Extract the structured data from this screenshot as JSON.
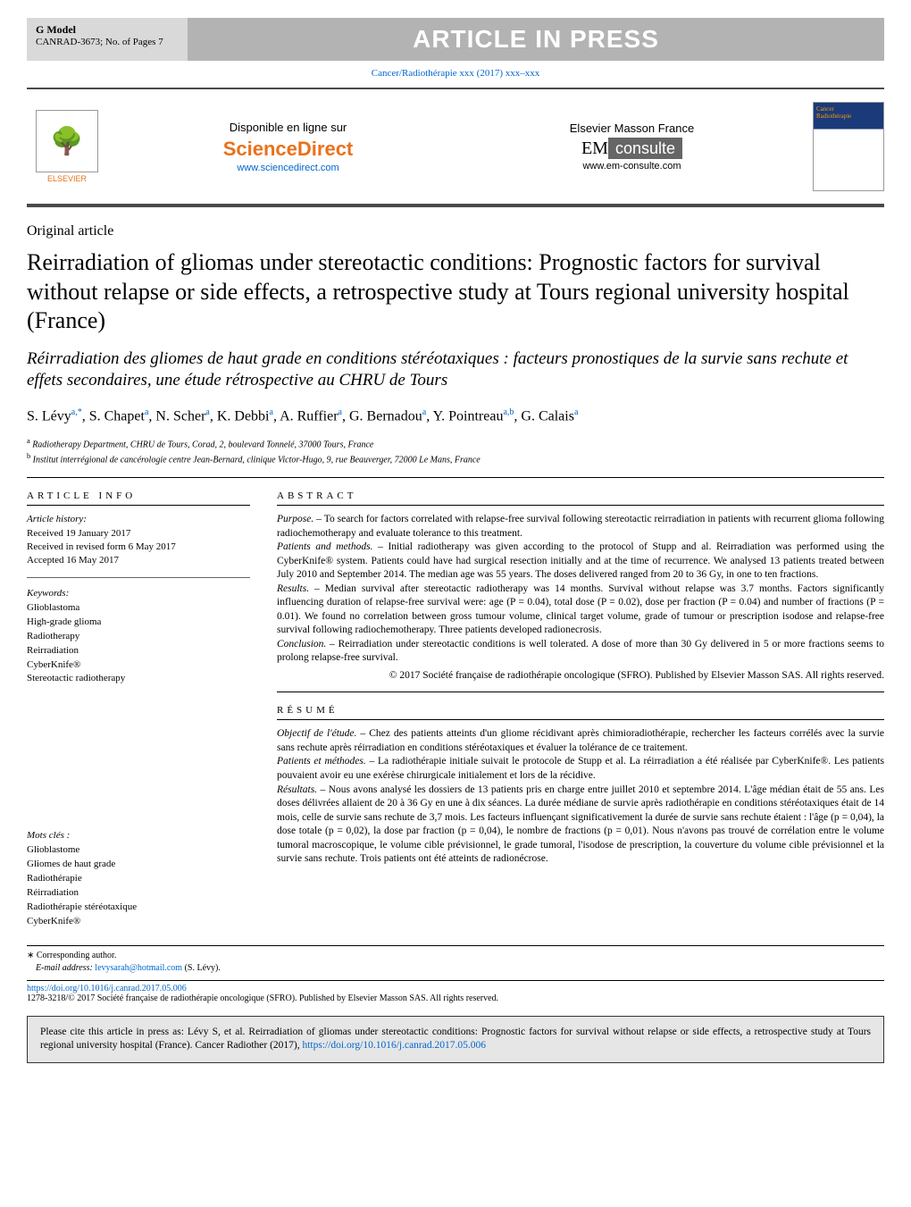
{
  "topbar": {
    "gmodel": "G Model",
    "canrad": "CANRAD-3673;   No. of Pages 7",
    "banner": "ARTICLE IN PRESS"
  },
  "journal_ref": "Cancer/Radiothérapie xxx (2017) xxx–xxx",
  "header": {
    "elsevier": "ELSEVIER",
    "disponible": "Disponible en ligne sur",
    "sciencedirect": "ScienceDirect",
    "sd_url": "www.sciencedirect.com",
    "masson_label": "Elsevier Masson France",
    "em": "EM",
    "consulte": "consulte",
    "em_url": "www.em-consulte.com",
    "cover_top": "Cancer",
    "cover_sub": "Radiothérapie"
  },
  "article_type": "Original article",
  "title": "Reirradiation of gliomas under stereotactic conditions: Prognostic factors for survival without relapse or side effects, a retrospective study at Tours regional university hospital (France)",
  "subtitle_fr": "Réirradiation des gliomes de haut grade en conditions stéréotaxiques : facteurs pronostiques de la survie sans rechute et effets secondaires, une étude rétrospective au CHRU de Tours",
  "authors_html": "S. Lévy<sup>a,*</sup>, S. Chapet<sup>a</sup>, N. Scher<sup>a</sup>, K. Debbi<sup>a</sup>, A. Ruffier<sup>a</sup>, G. Bernadou<sup>a</sup>, Y. Pointreau<sup>a,b</sup>, G. Calais<sup>a</sup>",
  "affiliations": {
    "a": "Radiotherapy Department, CHRU de Tours, Corad, 2, boulevard Tonnelé, 37000 Tours, France",
    "b": "Institut interrégional de cancérologie centre Jean-Bernard, clinique Victor-Hugo, 9, rue Beauverger, 72000 Le Mans, France"
  },
  "info": {
    "label": "article info",
    "history_h": "Article history:",
    "received": "Received 19 January 2017",
    "revised": "Received in revised form 6 May 2017",
    "accepted": "Accepted 16 May 2017",
    "keywords_h": "Keywords:",
    "keywords": [
      "Glioblastoma",
      "High-grade glioma",
      "Radiotherapy",
      "Reirradiation",
      "CyberKnife®",
      "Stereotactic radiotherapy"
    ],
    "mots_h": "Mots clés :",
    "mots": [
      "Glioblastome",
      "Gliomes de haut grade",
      "Radiothérapie",
      "Réirradiation",
      "Radiothérapie stéréotaxique",
      "CyberKnife®"
    ]
  },
  "abstract": {
    "label": "abstract",
    "purpose_h": "Purpose. – ",
    "purpose": "To search for factors correlated with relapse-free survival following stereotactic reirradiation in patients with recurrent glioma following radiochemotherapy and evaluate tolerance to this treatment.",
    "methods_h": "Patients and methods. – ",
    "methods": "Initial radiotherapy was given according to the protocol of Stupp and al. Reirradiation was performed using the CyberKnife® system. Patients could have had surgical resection initially and at the time of recurrence. We analysed 13 patients treated between July 2010 and September 2014. The median age was 55 years. The doses delivered ranged from 20 to 36 Gy, in one to ten fractions.",
    "results_h": "Results. – ",
    "results": "Median survival after stereotactic radiotherapy was 14 months. Survival without relapse was 3.7 months. Factors significantly influencing duration of relapse-free survival were: age (P = 0.04), total dose (P = 0.02), dose per fraction (P = 0.04) and number of fractions (P = 0.01). We found no correlation between gross tumour volume, clinical target volume, grade of tumour or prescription isodose and relapse-free survival following radiochemotherapy. Three patients developed radionecrosis.",
    "conclusion_h": "Conclusion. – ",
    "conclusion": "Reirradiation under stereotactic conditions is well tolerated. A dose of more than 30 Gy delivered in 5 or more fractions seems to prolong relapse-free survival.",
    "copyright": "© 2017 Société française de radiothérapie oncologique (SFRO). Published by Elsevier Masson SAS. All rights reserved."
  },
  "resume": {
    "label": "résumé",
    "objectif_h": "Objectif de l'étude. – ",
    "objectif": "Chez des patients atteints d'un gliome récidivant après chimioradiothérapie, rechercher les facteurs corrélés avec la survie sans rechute après réirradiation en conditions stéréotaxiques et évaluer la tolérance de ce traitement.",
    "methodes_h": "Patients et méthodes. – ",
    "methodes": "La radiothérapie initiale suivait le protocole de Stupp et al. La réirradiation a été réalisée par CyberKnife®. Les patients pouvaient avoir eu une exérèse chirurgicale initialement et lors de la récidive.",
    "resultats_h": "Résultats. – ",
    "resultats": "Nous avons analysé les dossiers de 13 patients pris en charge entre juillet 2010 et septembre 2014. L'âge médian était de 55 ans. Les doses délivrées allaient de 20 à 36 Gy en une à dix séances. La durée médiane de survie après radiothérapie en conditions stéréotaxiques était de 14 mois, celle de survie sans rechute de 3,7 mois. Les facteurs influençant significativement la durée de survie sans rechute étaient : l'âge (p = 0,04), la dose totale (p = 0,02), la dose par fraction (p = 0,04), le nombre de fractions (p = 0,01). Nous n'avons pas trouvé de corrélation entre le volume tumoral macroscopique, le volume cible prévisionnel, le grade tumoral, l'isodose de prescription, la couverture du volume cible prévisionnel et la survie sans rechute. Trois patients ont été atteints de radionécrose."
  },
  "footer": {
    "corr_star": "∗",
    "corr": "Corresponding author.",
    "email_h": "E-mail address:",
    "email": "levysarah@hotmail.com",
    "email_name": "(S. Lévy).",
    "doi": "https://doi.org/10.1016/j.canrad.2017.05.006",
    "issn": "1278-3218/© 2017 Société française de radiothérapie oncologique (SFRO). Published by Elsevier Masson SAS. All rights reserved."
  },
  "citebox": {
    "text": "Please cite this article in press as: Lévy S, et al. Reirradiation of gliomas under stereotactic conditions: Prognostic factors for survival without relapse or side effects, a retrospective study at Tours regional university hospital (France). Cancer Radiother (2017),",
    "doi": "https://doi.org/10.1016/j.canrad.2017.05.006"
  }
}
